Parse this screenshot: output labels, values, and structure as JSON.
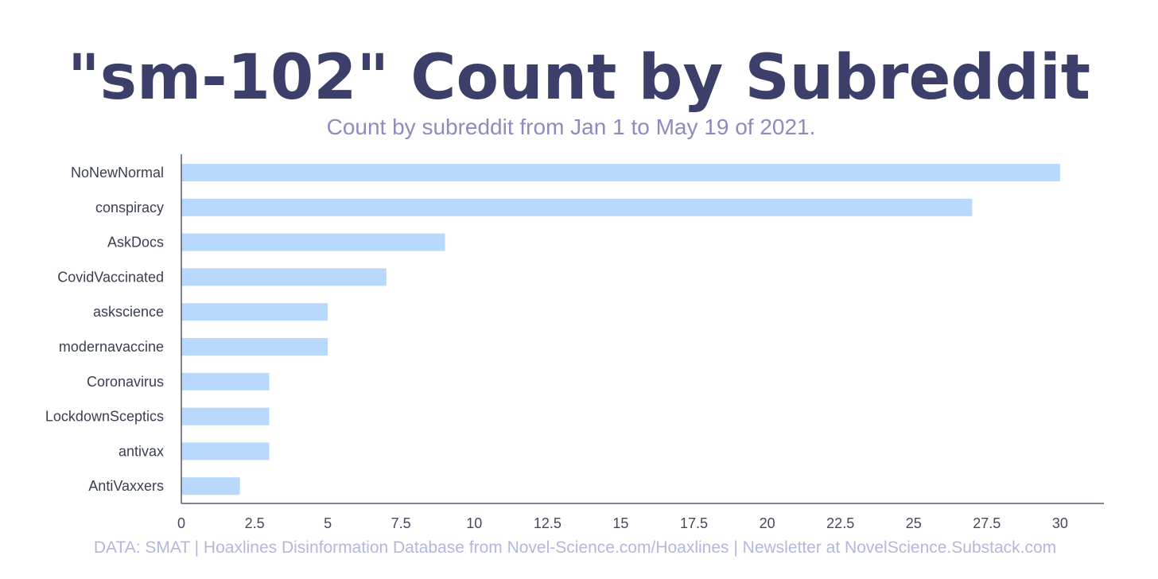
{
  "title": "\"sm-102\" Count by Subreddit",
  "subtitle": "Count by subreddit from Jan 1 to May 19 of 2021.",
  "footer": "DATA: SMAT | Hoaxlines Disinformation Database from Novel-Science.com/Hoaxlines | Newsletter at NovelScience.Substack.com",
  "colors": {
    "title": "#3d3f6b",
    "subtitle": "#8c8cbf",
    "bar": "#b8d9fb",
    "axis": "#555a70",
    "tick_label": "#444a5e",
    "category_label": "#3a3f52",
    "footer": "#b4b7dc"
  },
  "chart_data": {
    "type": "bar",
    "orientation": "horizontal",
    "categories": [
      "NoNewNormal",
      "conspiracy",
      "AskDocs",
      "CovidVaccinated",
      "askscience",
      "modernavaccine",
      "Coronavirus",
      "LockdownSceptics",
      "antivax",
      "AntiVaxxers"
    ],
    "values": [
      30,
      27,
      9,
      7,
      5,
      5,
      3,
      3,
      3,
      2
    ],
    "xlim": [
      0,
      31.5
    ],
    "xticks": [
      0,
      2.5,
      5,
      7.5,
      10,
      12.5,
      15,
      17.5,
      20,
      22.5,
      25,
      27.5,
      30
    ],
    "xtick_labels": [
      "0",
      "2.5",
      "5",
      "7.5",
      "10",
      "12.5",
      "15",
      "17.5",
      "20",
      "22.5",
      "25",
      "27.5",
      "30"
    ],
    "grid": false,
    "legend": "none"
  }
}
